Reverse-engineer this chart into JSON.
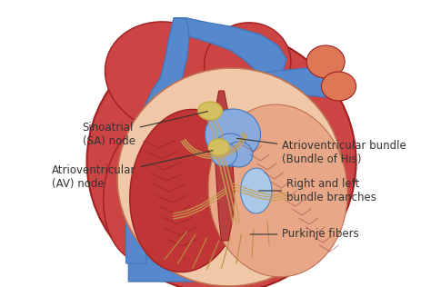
{
  "bg_color": "#ffffff",
  "heart_red": "#cc4444",
  "heart_red2": "#c03535",
  "heart_red_dark": "#a02020",
  "heart_red_light": "#e06060",
  "heart_orange_red": "#d45030",
  "heart_pink": "#e8b090",
  "heart_peach": "#f0c8a8",
  "heart_blue": "#5588cc",
  "heart_blue2": "#4477bb",
  "heart_blue_light": "#88aadd",
  "heart_blue_pale": "#aac8e8",
  "vessel_red": "#cc5544",
  "vessel_red2": "#dd7755",
  "node_yellow": "#d4c060",
  "node_yellow2": "#c8b040",
  "conduction_tan": "#c8a055",
  "conduction_tan2": "#b89040",
  "muscle_dark": "#8b2020",
  "muscle_mid": "#a03030",
  "septum_color": "#b84040",
  "line_color": "#333333",
  "font_size": 8.5,
  "labels": {
    "sa_node": "Sinoatrial\n(SA) node",
    "av_node": "Atrioventricular\n(AV) node",
    "av_bundle": "Atrioventricular bundle\n(Bundle of His)",
    "bundle_branches": "Right and left\nbundle branches",
    "purkinje": "Purkinje fibers"
  }
}
